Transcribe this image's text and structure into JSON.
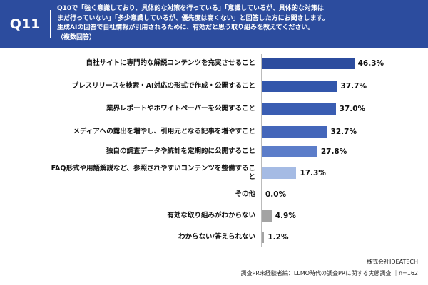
{
  "chart_data": {
    "type": "bar",
    "question_number": "Q11",
    "title_lines": [
      "Q10で「強く意識しており、具体的な対策を行っている」「意識しているが、具体的な対策は",
      "まだ行っていない」「多少意識しているが、優先度は高くない」と回答した方にお聞きします。",
      "生成AIの回答で自社情報が引用されるために、有効だと思う取り組みを教えてください。",
      "（複数回答）"
    ],
    "categories": [
      "自社サイトに専門的な解説コンテンツを充実させること",
      "プレスリリースを検索・AI対応の形式で作成・公開すること",
      "業界レポートやホワイトペーパーを公開すること",
      "メディアへの露出を増やし、引用元となる記事を増やすこと",
      "独自の調査データや統計を定期的に公開すること",
      "FAQ形式や用語解説など、参照されやすいコンテンツを整備すること",
      "その他",
      "有効な取り組みがわからない",
      "わからない/答えられない"
    ],
    "values": [
      46.3,
      37.7,
      37.0,
      32.7,
      27.8,
      17.3,
      0.0,
      4.9,
      1.2
    ],
    "value_labels": [
      "46.3%",
      "37.7%",
      "37.0%",
      "32.7%",
      "27.8%",
      "17.3%",
      "0.0%",
      "4.9%",
      "1.2%"
    ],
    "colors": [
      "#2c4c9e",
      "#3256ab",
      "#3a5db2",
      "#4466ba",
      "#5c7dc9",
      "#a5bbe4",
      "#a5bbe4",
      "#a3a3a3",
      "#a3a3a3"
    ],
    "source": [
      "株式会社IDEATECH",
      "調査PR未経験者編：LLMO時代の調査PRに関する実態調査 ｜n=162"
    ]
  }
}
